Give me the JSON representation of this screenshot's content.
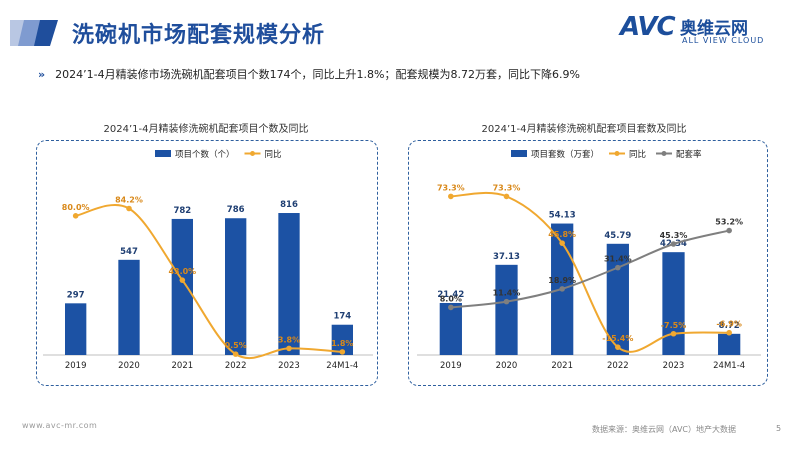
{
  "page": {
    "title": "洗碗机市场配套规模分析",
    "bullet": "2024’1-4月精装修市场洗碗机配套项目个数174个，同比上升1.8%；配套规模为8.72万套，同比下降6.9%",
    "footer_left": "www.avc-mr.com",
    "footer_source": "数据来源：奥维云网（AVC）地产大数据",
    "page_number": "5"
  },
  "logo": {
    "mark": "AVC",
    "cn": "奥维云网",
    "en": "ALL VIEW CLOUD"
  },
  "colors": {
    "bar": "#1c52a4",
    "line_orange": "#f0a830",
    "line_gray": "#7f7f7f",
    "title": "#1f4e9c"
  },
  "chart_data": [
    {
      "type": "bar",
      "title": "2024’1-4月精装修洗碗机配套项目个数及同比",
      "categories": [
        "2019",
        "2020",
        "2021",
        "2022",
        "2023",
        "24M1-4"
      ],
      "series": [
        {
          "name": "项目个数（个）",
          "kind": "bar",
          "values": [
            297,
            547,
            782,
            786,
            816,
            174
          ],
          "labels": [
            "297",
            "547",
            "782",
            "786",
            "816",
            "174"
          ]
        },
        {
          "name": "同比",
          "kind": "line",
          "values": [
            80.0,
            84.2,
            43.0,
            0.5,
            3.8,
            1.8
          ],
          "labels": [
            "80.0%",
            "84.2%",
            "43.0%",
            "0.5%",
            "3.8%",
            "1.8%"
          ]
        }
      ],
      "bar_ylim": [
        0,
        1000
      ],
      "line_ylim": [
        0,
        100
      ]
    },
    {
      "type": "bar",
      "title": "2024’1-4月精装修洗碗机配套项目套数及同比",
      "categories": [
        "2019",
        "2020",
        "2021",
        "2022",
        "2023",
        "24M1-4"
      ],
      "series": [
        {
          "name": "项目套数（万套）",
          "kind": "bar",
          "values": [
            21.42,
            37.13,
            54.13,
            45.79,
            42.34,
            8.72
          ],
          "labels": [
            "21.42",
            "37.13",
            "54.13",
            "45.79",
            "42.34",
            "8.72"
          ]
        },
        {
          "name": "同比",
          "kind": "line",
          "values": [
            73.3,
            73.3,
            45.8,
            -15.4,
            -7.5,
            -6.9
          ],
          "labels": [
            "73.3%",
            "73.3%",
            "45.8%",
            "-15.4%",
            "-7.5%",
            "-6.9%"
          ]
        },
        {
          "name": "配套率",
          "kind": "line",
          "values": [
            8.0,
            11.4,
            18.9,
            31.4,
            45.3,
            53.2
          ],
          "labels": [
            "8.0%",
            "11.4%",
            "18.9%",
            "31.4%",
            "45.3%",
            "53.2%"
          ]
        }
      ],
      "bar_ylim": [
        0,
        70
      ],
      "line_ylim": [
        -20,
        80
      ]
    }
  ]
}
